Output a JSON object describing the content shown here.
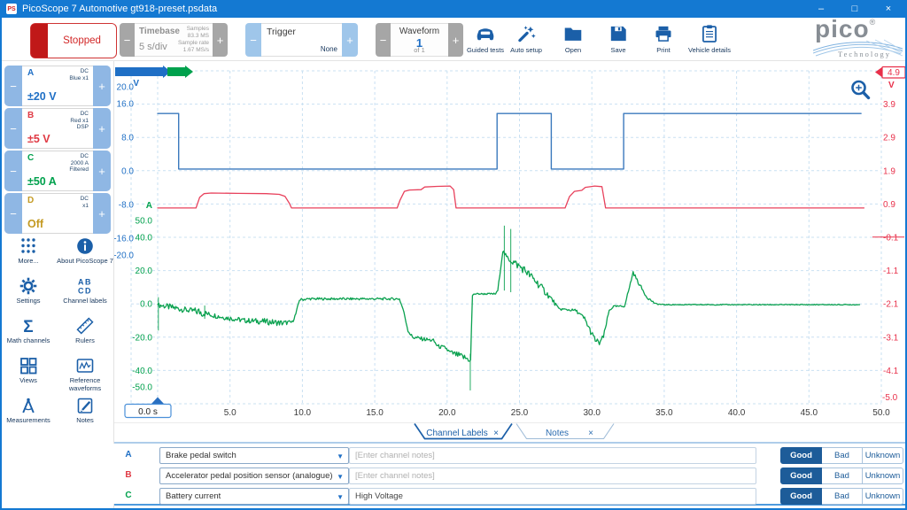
{
  "window": {
    "title": "PicoScope 7 Automotive gt918-preset.psdata",
    "app_icon_glyph": "PS",
    "controls": [
      {
        "name": "minimize",
        "glyph": "–"
      },
      {
        "name": "maximize",
        "glyph": "□"
      },
      {
        "name": "close",
        "glyph": "×"
      }
    ]
  },
  "toolbar": {
    "stopped": "Stopped",
    "minus": "−",
    "plus": "+",
    "timebase": {
      "label": "Timebase",
      "value": "5 s/div",
      "samples_label": "Samples",
      "samples_value": "83.3 MS",
      "rate_label": "Sample rate",
      "rate_value": "1.67 MS/s"
    },
    "trigger": {
      "label": "Trigger",
      "value": "None"
    },
    "waveform": {
      "label": "Waveform",
      "value": "1",
      "of": "of 1"
    },
    "actions": [
      {
        "name": "guided-tests",
        "icon": "car",
        "label": "Guided tests"
      },
      {
        "name": "auto-setup",
        "icon": "wand",
        "label": "Auto setup"
      },
      {
        "name": "open",
        "icon": "folder",
        "label": "Open"
      },
      {
        "name": "save",
        "icon": "floppy",
        "label": "Save"
      },
      {
        "name": "print",
        "icon": "printer",
        "label": "Print"
      },
      {
        "name": "vehicle-details",
        "icon": "clipboard",
        "label": "Vehicle details"
      }
    ],
    "logo": {
      "brand": "pico",
      "reg": "®",
      "sub": "Technology"
    }
  },
  "channels": [
    {
      "id": "A",
      "color": "#1f6fc5",
      "info": [
        "DC",
        "Blue x1"
      ],
      "range": "±20 V"
    },
    {
      "id": "B",
      "color": "#e03a44",
      "info": [
        "DC",
        "Red x1",
        "DSP"
      ],
      "range": "±5 V"
    },
    {
      "id": "C",
      "color": "#00a14d",
      "info": [
        "DC",
        "2000 A",
        "Filtered"
      ],
      "range": "±50 A"
    },
    {
      "id": "D",
      "color": "#c49a22",
      "info": [
        "DC",
        "x1"
      ],
      "range": "Off"
    }
  ],
  "tools": [
    {
      "name": "more",
      "icon": "dots",
      "label": "More..."
    },
    {
      "name": "about",
      "icon": "info",
      "label": "About PicoScope 7"
    },
    {
      "name": "settings",
      "icon": "gear",
      "label": "Settings"
    },
    {
      "name": "channel-labels",
      "icon": "abcd",
      "label": "Channel labels"
    },
    {
      "name": "math-channels",
      "icon": "sigma",
      "label": "Math channels"
    },
    {
      "name": "rulers",
      "icon": "ruler",
      "label": "Rulers"
    },
    {
      "name": "views",
      "icon": "views",
      "label": "Views"
    },
    {
      "name": "reference-waveforms",
      "icon": "refwave",
      "label": "Reference waveforms"
    },
    {
      "name": "measurements",
      "icon": "compass",
      "label": "Measurements"
    },
    {
      "name": "notes",
      "icon": "notepad",
      "label": "Notes"
    }
  ],
  "chart_data": {
    "type": "line",
    "title": "",
    "x_axis": {
      "unit": "s",
      "range": [
        0,
        50
      ],
      "ticks": [
        5,
        10,
        15,
        20,
        25,
        30,
        35,
        40,
        45,
        50
      ],
      "origin_label": "0.0 s",
      "grid": "dashed"
    },
    "axes": [
      {
        "id": "A",
        "unit": "V",
        "color": "#1f6fc5",
        "side": "left",
        "ticks": [
          20,
          16,
          8,
          0,
          -8,
          -16,
          -20
        ]
      },
      {
        "id": "C",
        "unit": "A",
        "color": "#00a14d",
        "side": "left",
        "ticks": [
          50,
          40,
          20,
          0,
          -20,
          -40,
          -50
        ]
      },
      {
        "id": "B",
        "unit": "V",
        "color": "#e8304a",
        "side": "right",
        "ticks": [
          3.9,
          2.9,
          1.9,
          0.9,
          -0.1,
          -1.1,
          -2.1,
          -3.1,
          -4.1
        ],
        "top_label": "4.9",
        "bottom_label": "-5.0"
      }
    ],
    "series": [
      {
        "id": "A",
        "name": "Brake pedal switch",
        "unit": "V",
        "color": "#3b79bd",
        "points": [
          [
            0,
            13.6
          ],
          [
            1.45,
            13.6
          ],
          [
            1.45,
            0.4
          ],
          [
            23.45,
            0.4
          ],
          [
            23.45,
            13.6
          ],
          [
            27.2,
            13.6
          ],
          [
            27.2,
            0.4
          ],
          [
            32.2,
            0.4
          ],
          [
            32.2,
            13.6
          ],
          [
            48.6,
            13.6
          ]
        ]
      },
      {
        "id": "B",
        "name": "Accelerator pedal position sensor (analogue)",
        "unit": "V",
        "color": "#e8415c",
        "points": [
          [
            0,
            0.78
          ],
          [
            2.65,
            0.78
          ],
          [
            2.9,
            1.1
          ],
          [
            3.2,
            1.21
          ],
          [
            3.7,
            1.23
          ],
          [
            5.5,
            1.22
          ],
          [
            7.5,
            1.21
          ],
          [
            8.4,
            1.19
          ],
          [
            8.8,
            1.13
          ],
          [
            9.1,
            0.92
          ],
          [
            9.25,
            0.78
          ],
          [
            16.55,
            0.78
          ],
          [
            16.75,
            1.02
          ],
          [
            17.05,
            1.28
          ],
          [
            17.4,
            1.32
          ],
          [
            18.2,
            1.33
          ],
          [
            18.45,
            1.41
          ],
          [
            19.3,
            1.43
          ],
          [
            20.2,
            1.44
          ],
          [
            20.45,
            1.33
          ],
          [
            20.62,
            0.78
          ],
          [
            28.15,
            0.78
          ],
          [
            28.45,
            1.12
          ],
          [
            28.8,
            1.28
          ],
          [
            29.3,
            1.31
          ],
          [
            29.55,
            1.4
          ],
          [
            30.2,
            1.44
          ],
          [
            30.7,
            1.42
          ],
          [
            30.95,
            0.78
          ],
          [
            48.8,
            0.78
          ]
        ]
      },
      {
        "id": "C",
        "name": "Battery current",
        "unit": "A",
        "color": "#0aa14f",
        "noisy": true,
        "points": [
          [
            0,
            0,
            0.3
          ],
          [
            0.15,
            -0.8,
            1.6
          ],
          [
            1.2,
            -2.5,
            2
          ],
          [
            2.2,
            -4,
            1.6
          ],
          [
            3.1,
            -5,
            3.2
          ],
          [
            3.4,
            -6,
            1.6
          ],
          [
            4.5,
            -8,
            1.5
          ],
          [
            6,
            -10,
            1.5
          ],
          [
            7.2,
            -10.5,
            1.8
          ],
          [
            8.6,
            -11.5,
            1.8
          ],
          [
            9.3,
            -11,
            1
          ],
          [
            9.55,
            -6,
            0.8
          ],
          [
            9.8,
            2.5,
            0.8
          ],
          [
            10.5,
            3,
            0.7
          ],
          [
            16.7,
            3,
            0.7
          ],
          [
            16.95,
            -3,
            0.8
          ],
          [
            17.3,
            -16,
            1
          ],
          [
            17.6,
            -20,
            1.2
          ],
          [
            18.6,
            -21.5,
            1.2
          ],
          [
            19.05,
            -22,
            1
          ],
          [
            19.35,
            -25.5,
            1.2
          ],
          [
            19.9,
            -26.5,
            1.2
          ],
          [
            20.15,
            -29,
            1.5
          ],
          [
            20.8,
            -31,
            2
          ],
          [
            21.4,
            -33,
            2.2
          ],
          [
            21.62,
            -34,
            1
          ],
          [
            21.75,
            5,
            0.5
          ],
          [
            21.9,
            6,
            0.5
          ],
          [
            23.35,
            6,
            0.5
          ],
          [
            23.5,
            8,
            0.5
          ],
          [
            23.85,
            32,
            1
          ],
          [
            24.1,
            28,
            1.5
          ],
          [
            24.6,
            25,
            2.5
          ],
          [
            25.4,
            20,
            2.5
          ],
          [
            26.3,
            12,
            2.5
          ],
          [
            27.3,
            2,
            1.5
          ],
          [
            27.7,
            -3,
            0.8
          ],
          [
            28.9,
            -4,
            0.8
          ],
          [
            29.5,
            -9,
            1.5
          ],
          [
            30.1,
            -20,
            2
          ],
          [
            30.45,
            -24,
            2.5
          ],
          [
            30.8,
            -20,
            1.5
          ],
          [
            31.2,
            -4,
            1
          ],
          [
            31.5,
            -1.5,
            0.5
          ],
          [
            32.25,
            -1.5,
            0.5
          ],
          [
            32.6,
            10,
            1
          ],
          [
            32.85,
            19,
            1
          ],
          [
            33.2,
            13,
            1
          ],
          [
            33.8,
            4,
            0.8
          ],
          [
            34.4,
            0,
            0.4
          ],
          [
            35,
            -0.5,
            0.25
          ],
          [
            48.5,
            -0.5,
            0.25
          ]
        ],
        "spikes": [
          [
            0.05,
            4,
            -16
          ],
          [
            3.25,
            -1,
            -9
          ],
          [
            21.6,
            -30,
            -52
          ],
          [
            23.95,
            8,
            47
          ],
          [
            24.4,
            7,
            45
          ]
        ]
      }
    ],
    "legend": false
  },
  "tabs": [
    {
      "name": "channel-labels",
      "label": "Channel Labels",
      "close": "×",
      "active": true
    },
    {
      "name": "notes",
      "label": "Notes",
      "close": "×",
      "active": false
    }
  ],
  "label_rows": [
    {
      "channel": "A",
      "color": "#1f6fc5",
      "sensor": "Brake pedal switch",
      "note": "",
      "note_placeholder": "[Enter channel notes]",
      "rating": "Good"
    },
    {
      "channel": "B",
      "color": "#e03a44",
      "sensor": "Accelerator pedal position sensor (analogue)",
      "note": "",
      "note_placeholder": "[Enter channel notes]",
      "rating": "Good"
    },
    {
      "channel": "C",
      "color": "#00a14d",
      "sensor": "Battery current",
      "note": "High Voltage",
      "note_placeholder": "[Enter channel notes]",
      "rating": "Good"
    }
  ],
  "rating_options": [
    "Good",
    "Bad",
    "Unknown"
  ],
  "colors": {
    "titlebar": "#1479d2",
    "accent": "#1b5fa8",
    "grid": "#c9e0f2",
    "good_fill": "#1d5c99",
    "stopped_red": "#c01818"
  }
}
